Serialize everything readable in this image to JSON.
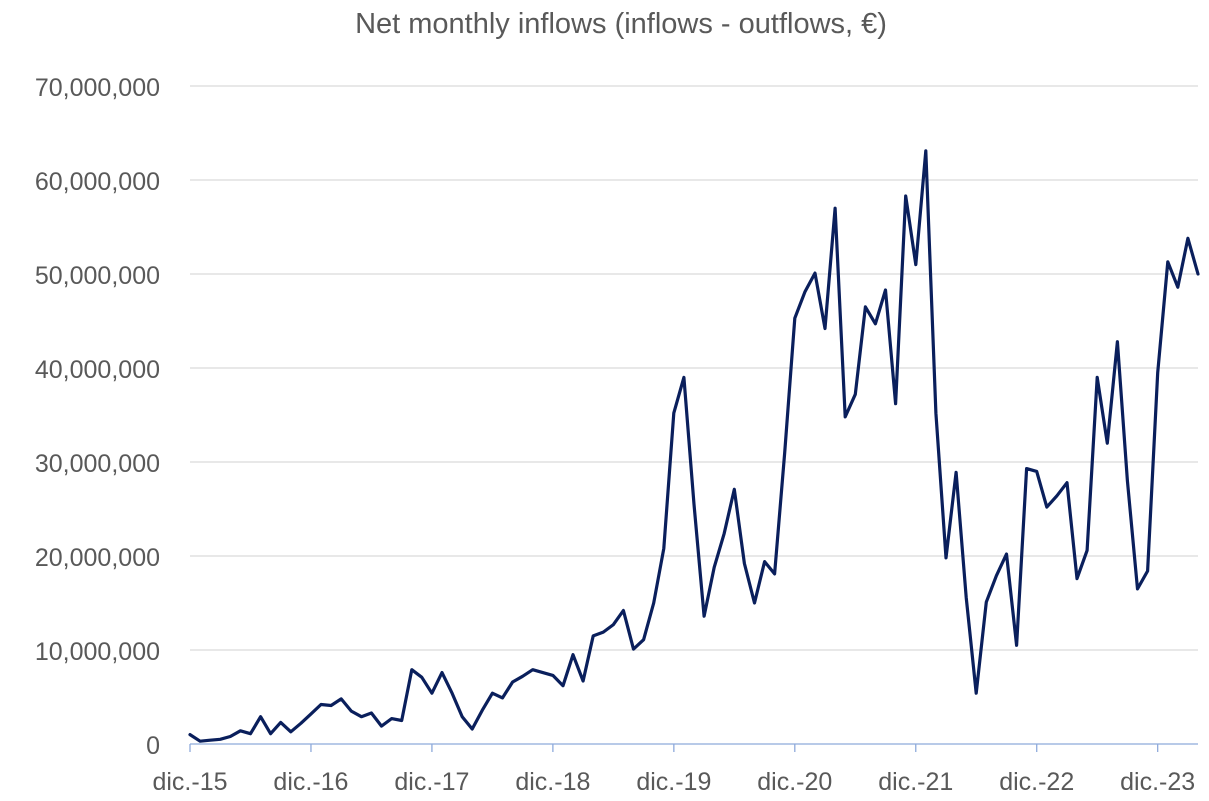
{
  "chart_data": {
    "type": "line",
    "title": "Net monthly inflows (inflows - outflows, €)",
    "xlabel": "",
    "ylabel": "",
    "ylim": [
      0,
      70000000
    ],
    "yticks": [
      "0",
      "10,000,000",
      "20,000,000",
      "30,000,000",
      "40,000,000",
      "50,000,000",
      "60,000,000",
      "70,000,000"
    ],
    "xticks": [
      "dic.-15",
      "dic.-16",
      "dic.-17",
      "dic.-18",
      "dic.-19",
      "dic.-20",
      "dic.-21",
      "dic.-22",
      "dic.-23"
    ],
    "grid": true,
    "legend": "none",
    "line_color": "#0a1f5c",
    "grid_color": "#d9d9d9",
    "axis_color": "#8eaadb",
    "series": [
      {
        "values": [
          1000000,
          300000,
          400000,
          500000,
          800000,
          1400000,
          1100000,
          2900000,
          1100000,
          2300000,
          1300000,
          2200000,
          3200000,
          4200000,
          4100000,
          4800000,
          3500000,
          2900000,
          3300000,
          1900000,
          2700000,
          2500000,
          7900000,
          7100000,
          5400000,
          7600000,
          5400000,
          2900000,
          1600000,
          3600000,
          5400000,
          4900000,
          6600000,
          7200000,
          7900000,
          7600000,
          7300000,
          6200000,
          9500000,
          6700000,
          11500000,
          11900000,
          12700000,
          14200000,
          10100000,
          11100000,
          15000000,
          20800000,
          35200000,
          39000000,
          25500000,
          13600000,
          18800000,
          22400000,
          27100000,
          19200000,
          15000000,
          19400000,
          18100000,
          31000000,
          45300000,
          48100000,
          50100000,
          44200000,
          57000000,
          34800000,
          37200000,
          46500000,
          44700000,
          48300000,
          36200000,
          58300000,
          51000000,
          63100000,
          35200000,
          19800000,
          28900000,
          15600000,
          5400000,
          15100000,
          17900000,
          20200000,
          10500000,
          29300000,
          29000000,
          25200000,
          26400000,
          27800000,
          17600000,
          20600000,
          39000000,
          32000000,
          42800000,
          28000000,
          16500000,
          18400000,
          39500000,
          51300000,
          48600000,
          53800000,
          50000000
        ]
      }
    ]
  }
}
